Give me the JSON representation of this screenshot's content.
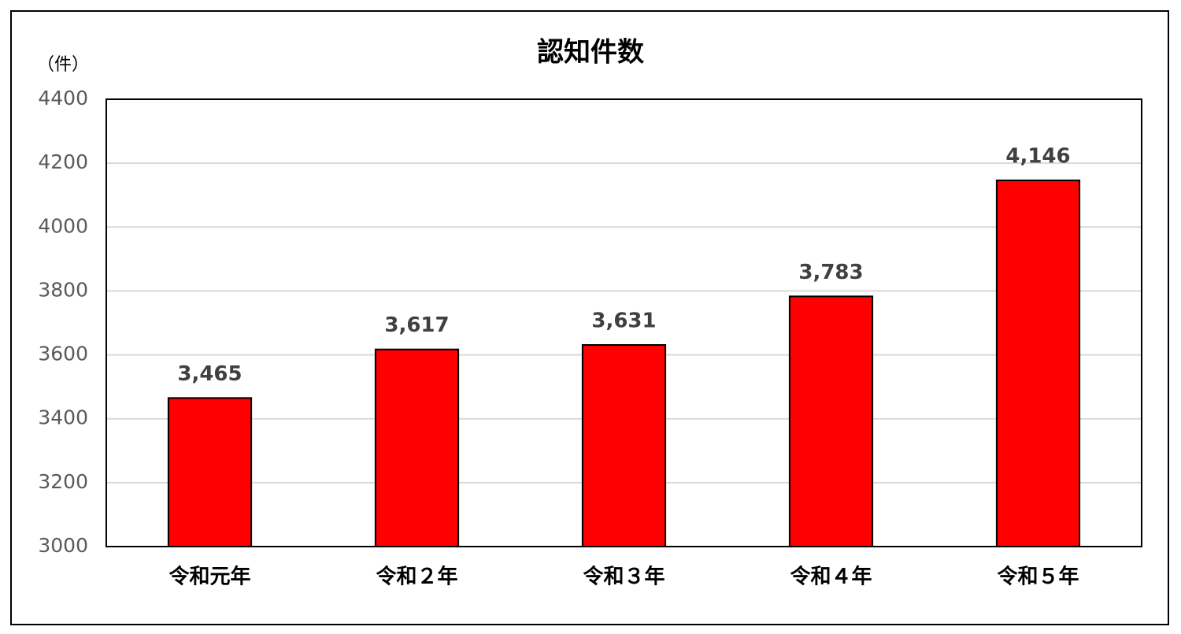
{
  "chart_data": {
    "type": "bar",
    "title": "認知件数",
    "y_label": "（件）",
    "categories": [
      "令和元年",
      "令和２年",
      "令和３年",
      "令和４年",
      "令和５年"
    ],
    "values": [
      3465,
      3617,
      3631,
      3783,
      4146
    ],
    "value_labels": [
      "3,465",
      "3,617",
      "3,631",
      "3,783",
      "4,146"
    ],
    "color": "#ff0000",
    "ylim": [
      3000,
      4400
    ],
    "yticks": [
      3000,
      3200,
      3400,
      3600,
      3800,
      4000,
      4200,
      4400
    ],
    "grid": true
  }
}
